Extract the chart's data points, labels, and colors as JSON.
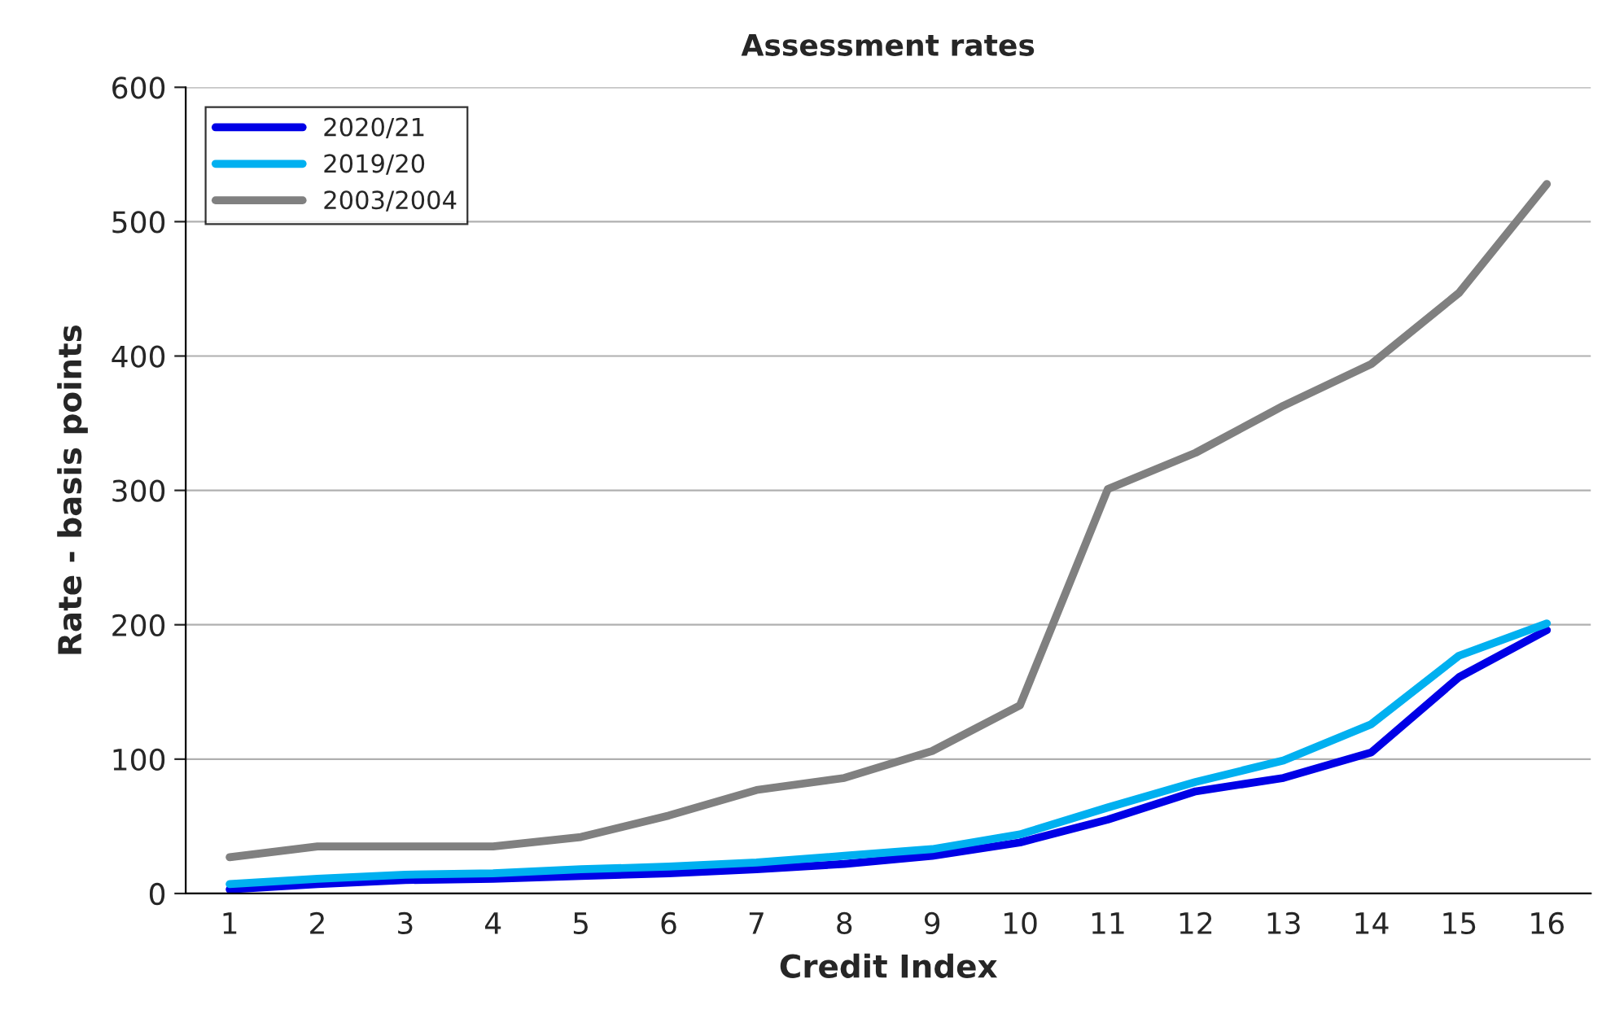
{
  "chart_data": {
    "type": "line",
    "title": "Assessment rates",
    "xlabel": "Credit Index",
    "ylabel": "Rate - basis points",
    "categories": [
      "1",
      "2",
      "3",
      "4",
      "5",
      "6",
      "7",
      "8",
      "9",
      "10",
      "11",
      "12",
      "13",
      "14",
      "15",
      "16"
    ],
    "series": [
      {
        "name": "2020/21",
        "color": "#0000e6",
        "values": [
          3,
          7,
          10,
          11,
          13,
          15,
          18,
          22,
          28,
          38,
          55,
          76,
          86,
          105,
          161,
          196
        ]
      },
      {
        "name": "2019/20",
        "color": "#00b0f0",
        "values": [
          7,
          11,
          14,
          15,
          18,
          20,
          23,
          28,
          33,
          44,
          64,
          83,
          99,
          126,
          177,
          201
        ]
      },
      {
        "name": "2003/2004",
        "color": "#808080",
        "values": [
          27,
          35,
          35,
          35,
          42,
          58,
          77,
          86,
          106,
          140,
          301,
          328,
          363,
          394,
          447,
          528
        ]
      }
    ],
    "ylim": [
      0,
      600
    ],
    "yticks": [
      0,
      100,
      200,
      300,
      400,
      500,
      600
    ],
    "grid": "y",
    "legend": "top left",
    "marker": "none",
    "line_style": "solid"
  }
}
